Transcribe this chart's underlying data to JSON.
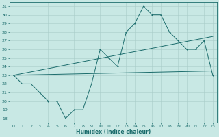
{
  "xlabel": "Humidex (Indice chaleur)",
  "xlim": [
    -0.5,
    23.5
  ],
  "ylim": [
    17.5,
    31.5
  ],
  "xticks": [
    0,
    1,
    2,
    3,
    4,
    5,
    6,
    7,
    8,
    9,
    10,
    11,
    12,
    13,
    14,
    15,
    16,
    17,
    18,
    19,
    20,
    21,
    22,
    23
  ],
  "yticks": [
    18,
    19,
    20,
    21,
    22,
    23,
    24,
    25,
    26,
    27,
    28,
    29,
    30,
    31
  ],
  "bg_color": "#c8e8e4",
  "grid_color": "#a8ccc8",
  "line_color": "#1a6b6b",
  "line1_x": [
    0,
    1,
    2,
    3,
    4,
    5,
    6,
    7,
    8,
    9,
    10,
    11,
    12,
    13,
    14,
    15,
    16,
    17,
    18,
    19,
    20,
    21,
    22,
    23
  ],
  "line1_y": [
    23,
    22,
    22,
    21,
    20,
    20,
    18,
    19,
    19,
    22,
    26,
    25,
    24,
    28,
    29,
    31,
    30,
    30,
    28,
    27,
    26,
    26,
    27,
    23
  ],
  "line2_x": [
    0,
    23
  ],
  "line2_y": [
    23,
    27.5
  ],
  "line3_x": [
    0,
    23
  ],
  "line3_y": [
    23,
    23.5
  ],
  "figsize": [
    3.2,
    2.0
  ],
  "dpi": 100
}
